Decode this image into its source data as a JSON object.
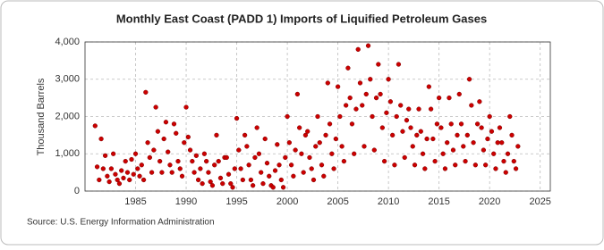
{
  "chart_data": {
    "type": "scatter",
    "title": "Monthly East Coast (PADD 1) Imports of Liquified Petroleum Gases",
    "y_label": "Thousand Barrels",
    "source": "Source: U.S. Energy Information Administration",
    "xlim": [
      1980,
      2026
    ],
    "xticks": [
      1985,
      1990,
      1995,
      2000,
      2005,
      2010,
      2015,
      2020,
      2025
    ],
    "ylim": [
      0,
      4000
    ],
    "yticks": [
      0,
      {
        "value": 1000,
        "label": "1,000"
      },
      {
        "value": 2000,
        "label": "2,000"
      },
      {
        "value": 3000,
        "label": "3,000"
      },
      {
        "value": 4000,
        "label": "4,000"
      }
    ],
    "grid": true,
    "color": "#cc0000",
    "x": [
      1981.0,
      1981.2,
      1981.4,
      1981.6,
      1981.8,
      1982.0,
      1982.2,
      1982.4,
      1982.6,
      1982.8,
      1983.0,
      1983.2,
      1983.4,
      1983.6,
      1983.8,
      1984.0,
      1984.2,
      1984.4,
      1984.6,
      1984.8,
      1985.0,
      1985.2,
      1985.4,
      1985.6,
      1985.8,
      1986.0,
      1986.2,
      1986.4,
      1986.6,
      1986.8,
      1987.0,
      1987.2,
      1987.4,
      1987.6,
      1987.8,
      1988.0,
      1988.2,
      1988.4,
      1988.6,
      1988.8,
      1989.0,
      1989.2,
      1989.4,
      1989.6,
      1989.8,
      1990.0,
      1990.2,
      1990.4,
      1990.6,
      1990.8,
      1991.0,
      1991.2,
      1991.4,
      1991.6,
      1991.8,
      1992.0,
      1992.2,
      1992.4,
      1992.6,
      1992.8,
      1993.0,
      1993.2,
      1993.4,
      1993.6,
      1993.8,
      1994.0,
      1994.2,
      1994.4,
      1994.6,
      1994.8,
      1995.0,
      1995.2,
      1995.4,
      1995.6,
      1995.8,
      1996.0,
      1996.2,
      1996.4,
      1996.6,
      1996.8,
      1997.0,
      1997.2,
      1997.4,
      1997.6,
      1997.8,
      1998.0,
      1998.2,
      1998.4,
      1998.6,
      1998.8,
      1999.0,
      1999.2,
      1999.4,
      1999.6,
      1999.8,
      2000.0,
      2000.2,
      2000.4,
      2000.6,
      2000.8,
      2001.0,
      2001.2,
      2001.4,
      2001.6,
      2001.8,
      2002.0,
      2002.2,
      2002.4,
      2002.6,
      2002.8,
      2003.0,
      2003.2,
      2003.4,
      2003.6,
      2003.8,
      2004.0,
      2004.2,
      2004.4,
      2004.6,
      2004.8,
      2005.0,
      2005.2,
      2005.4,
      2005.6,
      2005.8,
      2006.0,
      2006.2,
      2006.4,
      2006.6,
      2006.8,
      2007.0,
      2007.2,
      2007.4,
      2007.6,
      2007.8,
      2008.0,
      2008.2,
      2008.4,
      2008.6,
      2008.8,
      2009.0,
      2009.2,
      2009.4,
      2009.6,
      2009.8,
      2010.0,
      2010.2,
      2010.4,
      2010.6,
      2010.8,
      2011.0,
      2011.2,
      2011.4,
      2011.6,
      2011.8,
      2012.0,
      2012.2,
      2012.4,
      2012.6,
      2012.8,
      2013.0,
      2013.2,
      2013.4,
      2013.6,
      2013.8,
      2014.0,
      2014.2,
      2014.4,
      2014.6,
      2014.8,
      2015.0,
      2015.2,
      2015.4,
      2015.6,
      2015.8,
      2016.0,
      2016.2,
      2016.4,
      2016.6,
      2016.8,
      2017.0,
      2017.2,
      2017.4,
      2017.6,
      2017.8,
      2018.0,
      2018.2,
      2018.4,
      2018.6,
      2018.8,
      2019.0,
      2019.2,
      2019.4,
      2019.6,
      2019.8,
      2020.0,
      2020.2,
      2020.4,
      2020.6,
      2020.8,
      2021.0,
      2021.2,
      2021.4,
      2021.6,
      2021.8,
      2022.0,
      2022.2,
      2022.4,
      2022.6,
      2022.8
    ],
    "values": [
      1750,
      650,
      300,
      1400,
      600,
      950,
      400,
      250,
      600,
      1000,
      450,
      300,
      200,
      550,
      350,
      800,
      500,
      300,
      850,
      450,
      1000,
      600,
      400,
      700,
      300,
      2650,
      1300,
      900,
      500,
      1100,
      2250,
      1600,
      800,
      500,
      1400,
      1850,
      1050,
      700,
      500,
      1800,
      1550,
      800,
      600,
      400,
      1300,
      2250,
      1450,
      1100,
      800,
      500,
      950,
      300,
      600,
      200,
      1000,
      800,
      500,
      250,
      150,
      700,
      1500,
      800,
      350,
      200,
      900,
      900,
      450,
      200,
      100,
      600,
      1950,
      1100,
      600,
      300,
      1500,
      1200,
      700,
      300,
      150,
      900,
      1700,
      1000,
      500,
      200,
      1400,
      750,
      400,
      150,
      100,
      550,
      1250,
      700,
      300,
      100,
      900,
      2000,
      1300,
      700,
      400,
      1100,
      2600,
      1700,
      1000,
      500,
      1500,
      1600,
      900,
      600,
      300,
      1200,
      2000,
      1300,
      700,
      400,
      1500,
      2900,
      1800,
      1000,
      600,
      1400,
      2800,
      2000,
      1200,
      800,
      2300,
      3300,
      2500,
      1800,
      1000,
      2200,
      3800,
      2900,
      2300,
      1200,
      2600,
      3900,
      3000,
      2000,
      1100,
      2500,
      3400,
      2600,
      1700,
      800,
      2100,
      3000,
      2400,
      1500,
      700,
      2000,
      3400,
      2300,
      1600,
      900,
      1900,
      2200,
      1700,
      1200,
      700,
      1500,
      2200,
      1600,
      1000,
      600,
      1400,
      2800,
      2200,
      1400,
      800,
      1800,
      2500,
      1700,
      1000,
      600,
      1300,
      2500,
      1800,
      1100,
      700,
      1500,
      2600,
      1800,
      1200,
      800,
      1500,
      3000,
      2300,
      1300,
      700,
      1800,
      2400,
      1700,
      1100,
      700,
      1400,
      2000,
      1600,
      1000,
      600,
      1300,
      1700,
      1300,
      800,
      500,
      1000,
      2000,
      1500,
      800,
      600,
      1200
    ]
  }
}
